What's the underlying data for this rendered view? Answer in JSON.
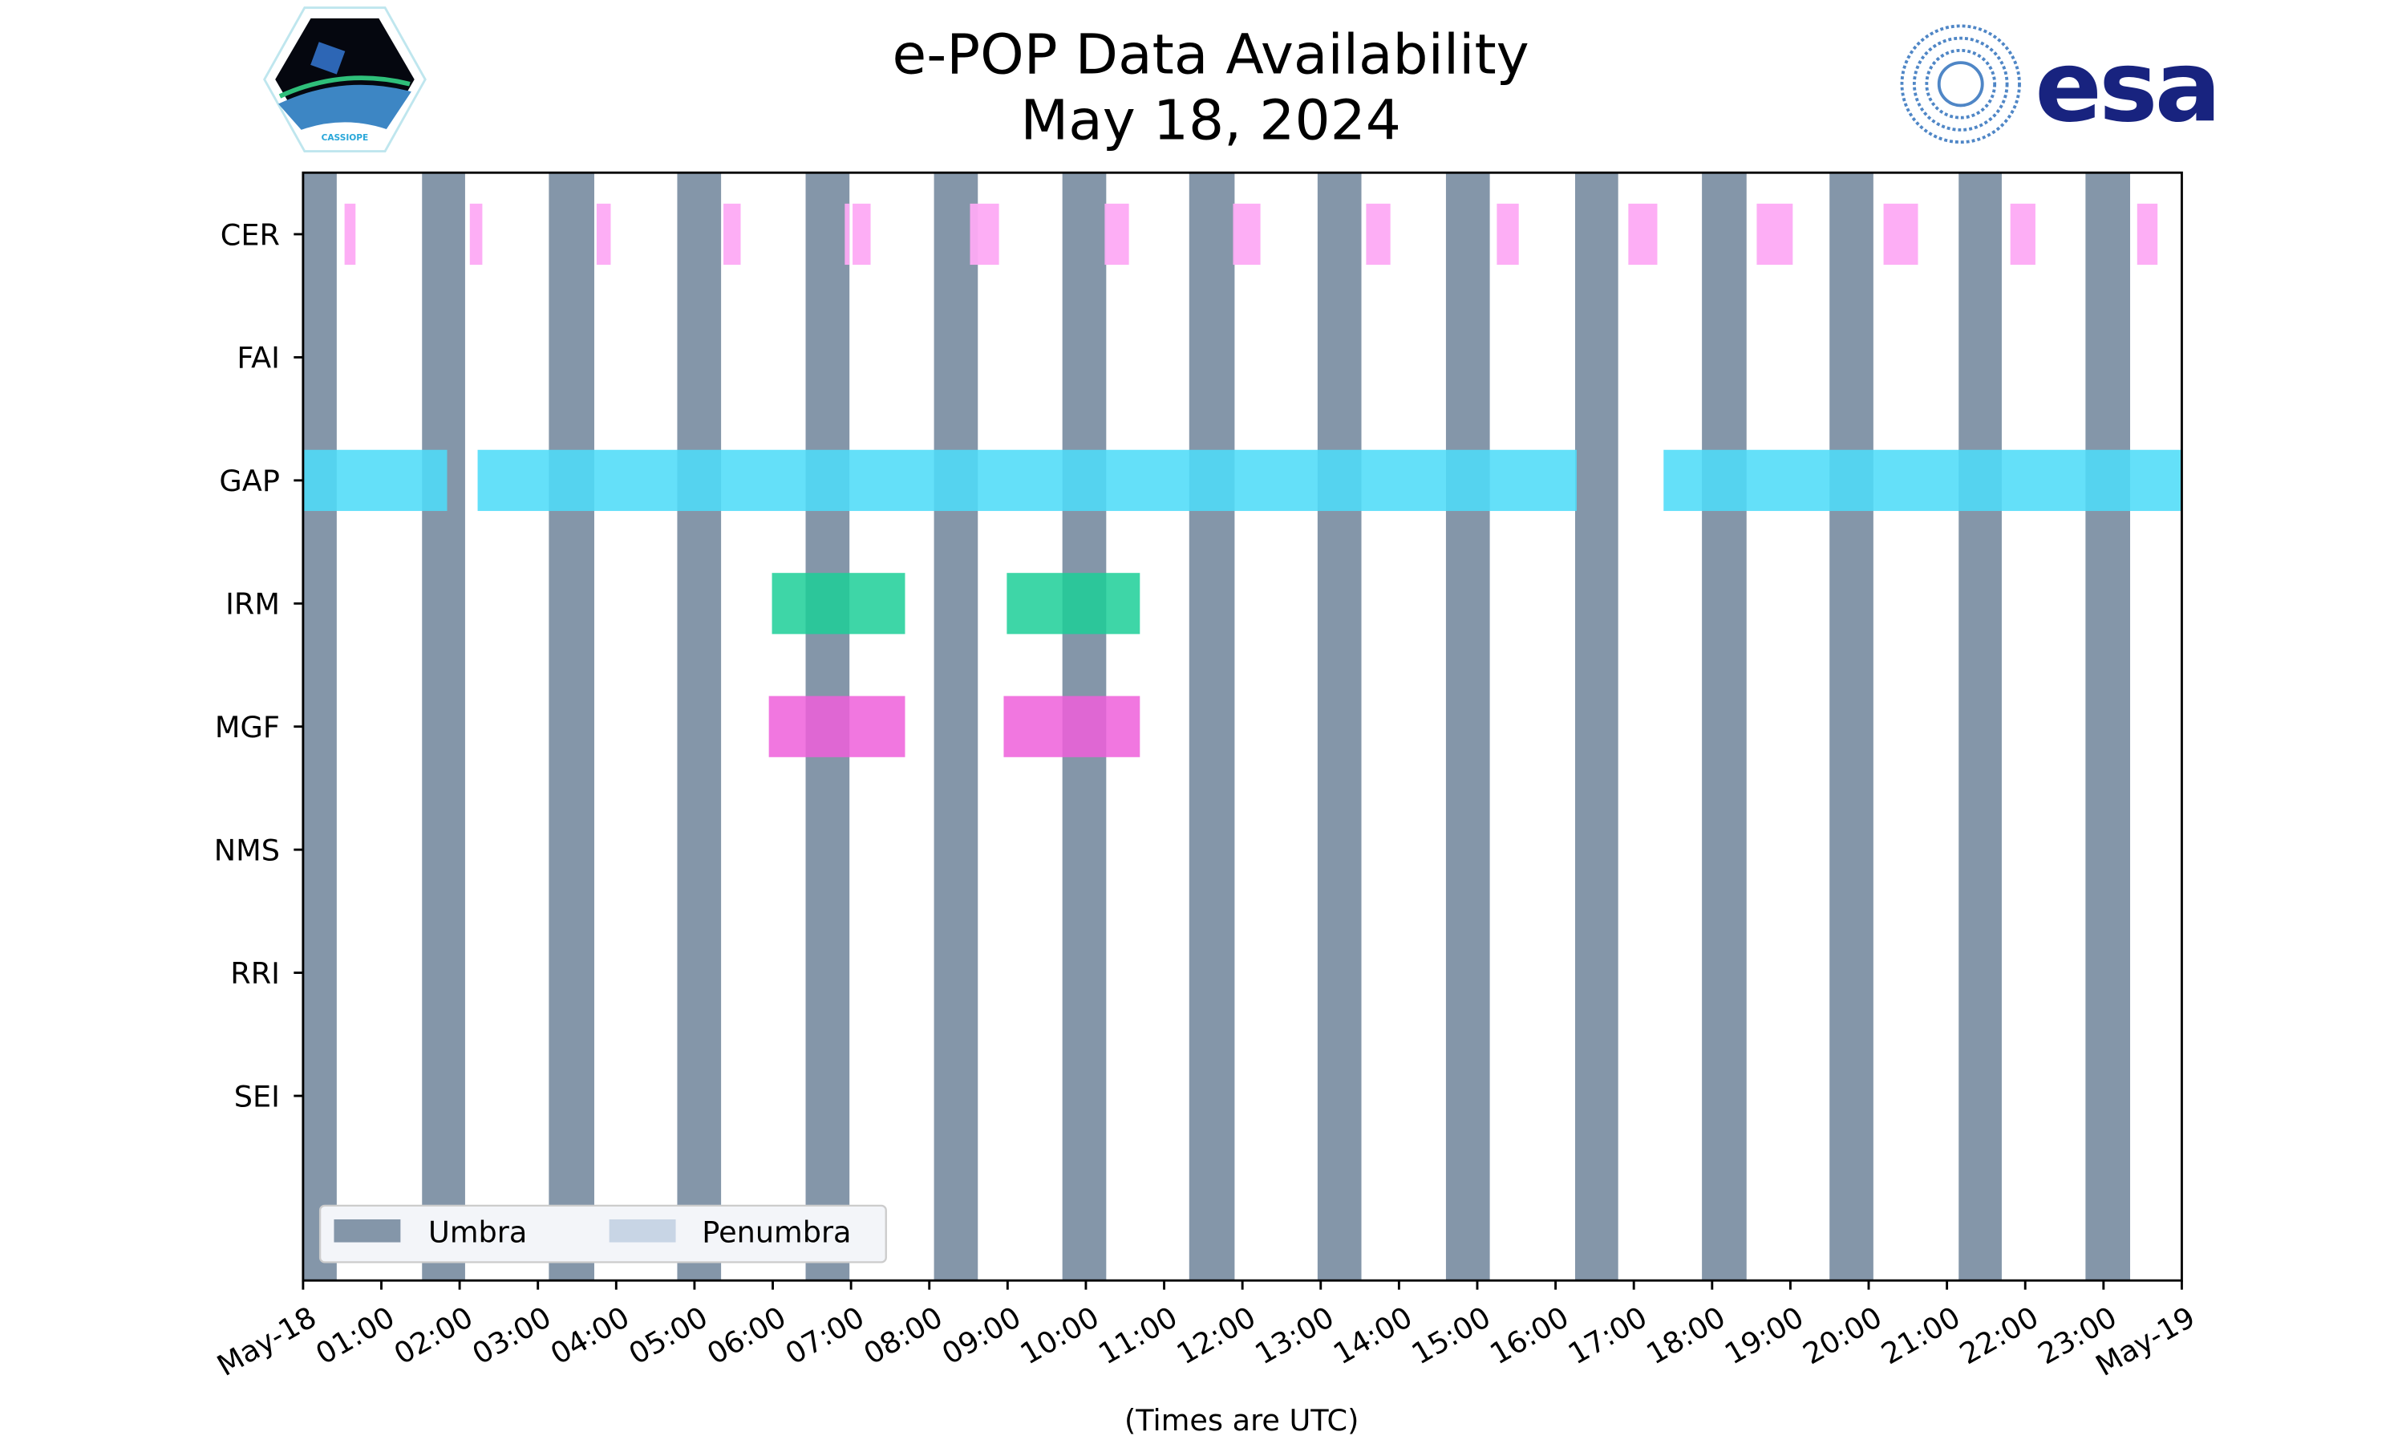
{
  "header": {
    "left_logo_text": "CASSIOPE",
    "right_logo_text": "esa"
  },
  "chart_data": {
    "type": "timeline",
    "title": "e-POP Data Availability",
    "subtitle": "May 18, 2024",
    "xlabel": "(Times are UTC)",
    "xlim_hours": [
      0,
      24
    ],
    "x_tick_labels": [
      "May-18",
      "01:00",
      "02:00",
      "03:00",
      "04:00",
      "05:00",
      "06:00",
      "07:00",
      "08:00",
      "09:00",
      "10:00",
      "11:00",
      "12:00",
      "13:00",
      "14:00",
      "15:00",
      "16:00",
      "17:00",
      "18:00",
      "19:00",
      "20:00",
      "21:00",
      "22:00",
      "23:00",
      "May-19"
    ],
    "categories": [
      "CER",
      "FAI",
      "GAP",
      "IRM",
      "MGF",
      "NMS",
      "RRI",
      "SEI"
    ],
    "colors": {
      "umbra": "#8496a9",
      "penumbra": "#c8d5e5",
      "CER": "#fdaaf4",
      "GAP": "#4fdcf8",
      "IRM": "#1ccf98",
      "MGF": "#ee5fda"
    },
    "umbra_intervals_hours": [
      [
        0,
        0.43
      ],
      [
        1.52,
        2.07
      ],
      [
        3.14,
        3.72
      ],
      [
        4.78,
        5.34
      ],
      [
        6.42,
        6.98
      ],
      [
        8.06,
        8.62
      ],
      [
        9.7,
        10.26
      ],
      [
        11.32,
        11.9
      ],
      [
        12.96,
        13.52
      ],
      [
        14.6,
        15.16
      ],
      [
        16.25,
        16.8
      ],
      [
        17.87,
        18.44
      ],
      [
        19.5,
        20.06
      ],
      [
        21.15,
        21.7
      ],
      [
        22.77,
        23.34
      ]
    ],
    "series": [
      {
        "name": "CER",
        "intervals_hours": [
          [
            0.53,
            0.67
          ],
          [
            2.13,
            2.29
          ],
          [
            3.75,
            3.93
          ],
          [
            5.37,
            5.59
          ],
          [
            6.92,
            6.98
          ],
          [
            7.02,
            7.25
          ],
          [
            8.52,
            8.89
          ],
          [
            10.24,
            10.55
          ],
          [
            11.88,
            12.23
          ],
          [
            13.58,
            13.89
          ],
          [
            15.25,
            15.53
          ],
          [
            16.93,
            17.3
          ],
          [
            18.57,
            19.03
          ],
          [
            20.19,
            20.63
          ],
          [
            21.81,
            22.13
          ],
          [
            23.43,
            23.69
          ]
        ]
      },
      {
        "name": "FAI",
        "intervals_hours": []
      },
      {
        "name": "GAP",
        "intervals_hours": [
          [
            0,
            1.84
          ],
          [
            2.23,
            16.27
          ],
          [
            17.38,
            24
          ]
        ]
      },
      {
        "name": "IRM",
        "intervals_hours": [
          [
            5.99,
            7.69
          ],
          [
            8.99,
            10.69
          ]
        ]
      },
      {
        "name": "MGF",
        "intervals_hours": [
          [
            5.95,
            7.69
          ],
          [
            8.95,
            10.69
          ]
        ]
      },
      {
        "name": "NMS",
        "intervals_hours": []
      },
      {
        "name": "RRI",
        "intervals_hours": []
      },
      {
        "name": "SEI",
        "intervals_hours": []
      }
    ],
    "legend": {
      "placement": "lower-left",
      "entries": [
        "Umbra",
        "Penumbra"
      ]
    }
  }
}
